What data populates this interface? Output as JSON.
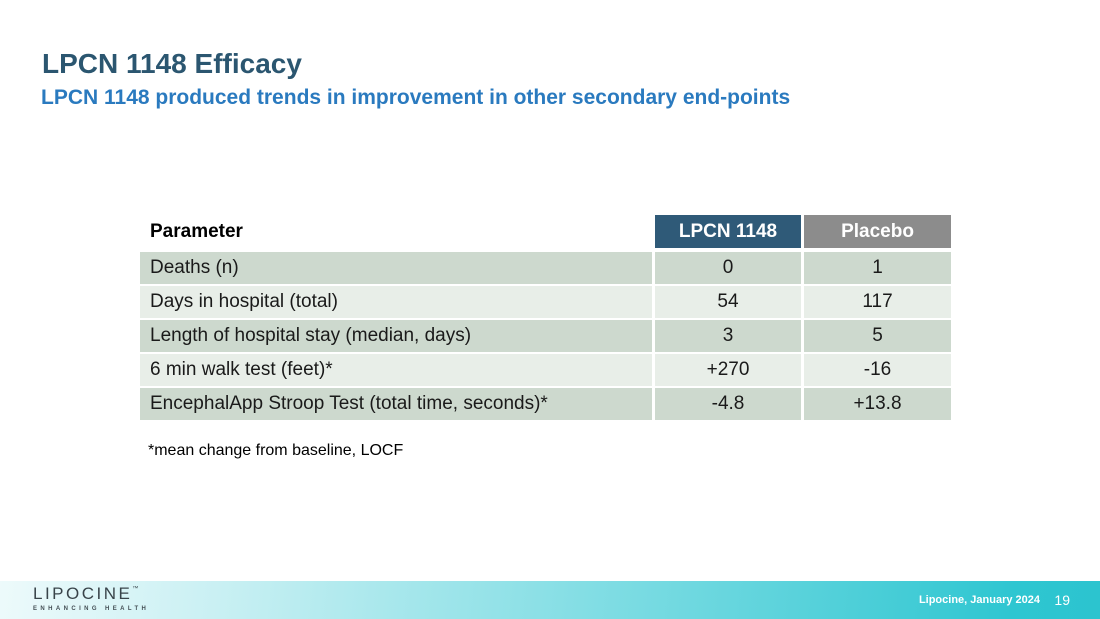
{
  "slide": {
    "title": "LPCN 1148 Efficacy",
    "subtitle": "LPCN 1148 produced trends in improvement in other secondary end-points",
    "footnote": "*mean change from baseline, LOCF"
  },
  "table": {
    "header": {
      "parameter": "Parameter",
      "lpcn": "LPCN 1148",
      "placebo": "Placebo"
    },
    "rows": [
      {
        "parameter": "Deaths (n)",
        "lpcn": "0",
        "placebo": "1"
      },
      {
        "parameter": "Days in hospital (total)",
        "lpcn": "54",
        "placebo": "117"
      },
      {
        "parameter": "Length of hospital stay (median, days)",
        "lpcn": "3",
        "placebo": "5"
      },
      {
        "parameter": "6 min walk test (feet)*",
        "lpcn": "+270",
        "placebo": "-16"
      },
      {
        "parameter": "EncephalApp Stroop Test (total time, seconds)*",
        "lpcn": "-4.8",
        "placebo": "+13.8"
      }
    ]
  },
  "footer": {
    "logo_text": "LIPOCINE",
    "logo_tm": "™",
    "logo_tagline": "ENHANCING HEALTH",
    "credit": "Lipocine, January 2024",
    "page_number": "19"
  },
  "colors": {
    "title_text": "#2B5670",
    "subtitle_text": "#2A7ABF",
    "header_lpcn_bg": "#2F5A78",
    "header_placebo_bg": "#8C8C8C",
    "row_dark_bg": "#CDD9CE",
    "row_light_bg": "#E8EEE8",
    "footer_teal": "#2EC6D1",
    "footer_light": "#EDFAFB"
  }
}
